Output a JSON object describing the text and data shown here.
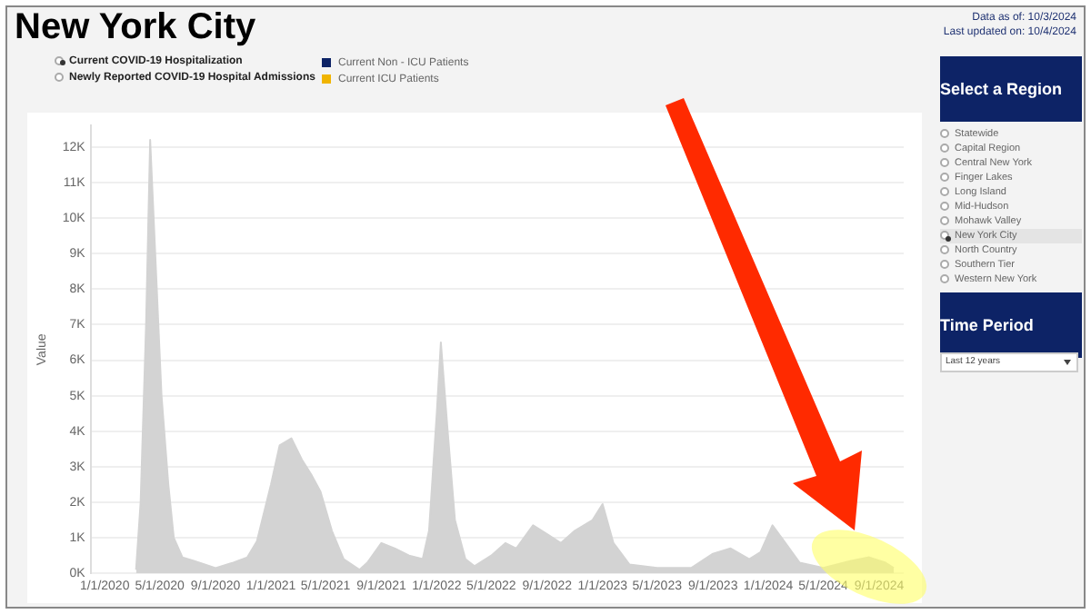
{
  "chart_data": {
    "type": "area",
    "title": "New York City",
    "ylabel": "Value",
    "annotations": [
      "Data as of: 10/3/2024",
      "Last updated on: 10/4/2024",
      "Current COVID-19 Hospitalization",
      "Newly Reported COVID-19 Hospital Admissions",
      "Current Non - ICU Patients",
      "Current ICU Patients",
      "Select a Region",
      "Statewide",
      "Capital Region",
      "Central New York",
      "Finger Lakes",
      "Long Island",
      "Mid-Hudson",
      "Mohawk Valley",
      "New York City",
      "North Country",
      "Southern Tier",
      "Western New York",
      "Time Period",
      "Last 12 years"
    ],
    "x": [
      "2020-03-10",
      "2020-03-20",
      "2020-04-01",
      "2020-04-10",
      "2020-05-05",
      "2020-05-20",
      "2020-06-01",
      "2020-06-20",
      "2020-07-15",
      "2020-09-01",
      "2020-10-10",
      "2020-11-10",
      "2020-12-01",
      "2021-01-01",
      "2021-01-20",
      "2021-02-15",
      "2021-03-10",
      "2021-04-01",
      "2021-04-20",
      "2021-05-15",
      "2021-06-10",
      "2021-07-15",
      "2021-08-01",
      "2021-09-01",
      "2021-10-01",
      "2021-11-01",
      "2021-12-01",
      "2021-12-15",
      "2022-01-01",
      "2022-01-10",
      "2022-01-25",
      "2022-02-10",
      "2022-03-05",
      "2022-03-25",
      "2022-05-01",
      "2022-06-01",
      "2022-06-25",
      "2022-08-01",
      "2022-09-01",
      "2022-10-01",
      "2022-11-01",
      "2022-12-10",
      "2023-01-01",
      "2023-01-25",
      "2023-03-01",
      "2023-05-01",
      "2023-07-15",
      "2023-09-01",
      "2023-10-10",
      "2023-11-20",
      "2023-12-15",
      "2024-01-10",
      "2024-02-05",
      "2024-03-10",
      "2024-05-01",
      "2024-07-01",
      "2024-08-10",
      "2024-09-15",
      "2024-10-03"
    ],
    "values": [
      0.1,
      2.0,
      7.0,
      12.2,
      5.0,
      2.5,
      1.0,
      0.45,
      0.35,
      0.15,
      0.3,
      0.45,
      0.9,
      2.5,
      3.6,
      3.8,
      3.2,
      2.75,
      2.3,
      1.2,
      0.4,
      0.1,
      0.3,
      0.85,
      0.7,
      0.5,
      0.4,
      1.2,
      4.5,
      6.5,
      4.0,
      1.5,
      0.4,
      0.2,
      0.5,
      0.85,
      0.7,
      1.35,
      1.1,
      0.85,
      1.2,
      1.5,
      1.95,
      0.85,
      0.25,
      0.15,
      0.15,
      0.55,
      0.7,
      0.4,
      0.6,
      1.35,
      0.9,
      0.3,
      0.15,
      0.35,
      0.45,
      0.3,
      0.15
    ],
    "color": "#d3d3d3",
    "xlim": [
      "2019-12-01",
      "2024-10-25"
    ],
    "xticks": [
      {
        "value": "2020-01-01",
        "label": "1/1/2020"
      },
      {
        "value": "2020-05-01",
        "label": "5/1/2020"
      },
      {
        "value": "2020-09-01",
        "label": "9/1/2020"
      },
      {
        "value": "2021-01-01",
        "label": "1/1/2021"
      },
      {
        "value": "2021-05-01",
        "label": "5/1/2021"
      },
      {
        "value": "2021-09-01",
        "label": "9/1/2021"
      },
      {
        "value": "2022-01-01",
        "label": "1/1/2022"
      },
      {
        "value": "2022-05-01",
        "label": "5/1/2022"
      },
      {
        "value": "2022-09-01",
        "label": "9/1/2022"
      },
      {
        "value": "2023-01-01",
        "label": "1/1/2023"
      },
      {
        "value": "2023-05-01",
        "label": "5/1/2023"
      },
      {
        "value": "2023-09-01",
        "label": "9/1/2023"
      },
      {
        "value": "2024-01-01",
        "label": "1/1/2024"
      },
      {
        "value": "2024-05-01",
        "label": "5/1/2024"
      },
      {
        "value": "2024-09-01",
        "label": "9/1/2024"
      }
    ],
    "ylim": [
      0,
      12.6
    ],
    "yticks": [
      {
        "value": 0,
        "label": "0K"
      },
      {
        "value": 1,
        "label": "1K"
      },
      {
        "value": 2,
        "label": "2K"
      },
      {
        "value": 3,
        "label": "3K"
      },
      {
        "value": 4,
        "label": "4K"
      },
      {
        "value": 5,
        "label": "5K"
      },
      {
        "value": 6,
        "label": "6K"
      },
      {
        "value": 7,
        "label": "7K"
      },
      {
        "value": 8,
        "label": "8K"
      },
      {
        "value": 9,
        "label": "9K"
      },
      {
        "value": 10,
        "label": "10K"
      },
      {
        "value": 11,
        "label": "11K"
      },
      {
        "value": 12,
        "label": "12K"
      }
    ],
    "grid": "y",
    "legend": false,
    "marker": "none"
  }
}
